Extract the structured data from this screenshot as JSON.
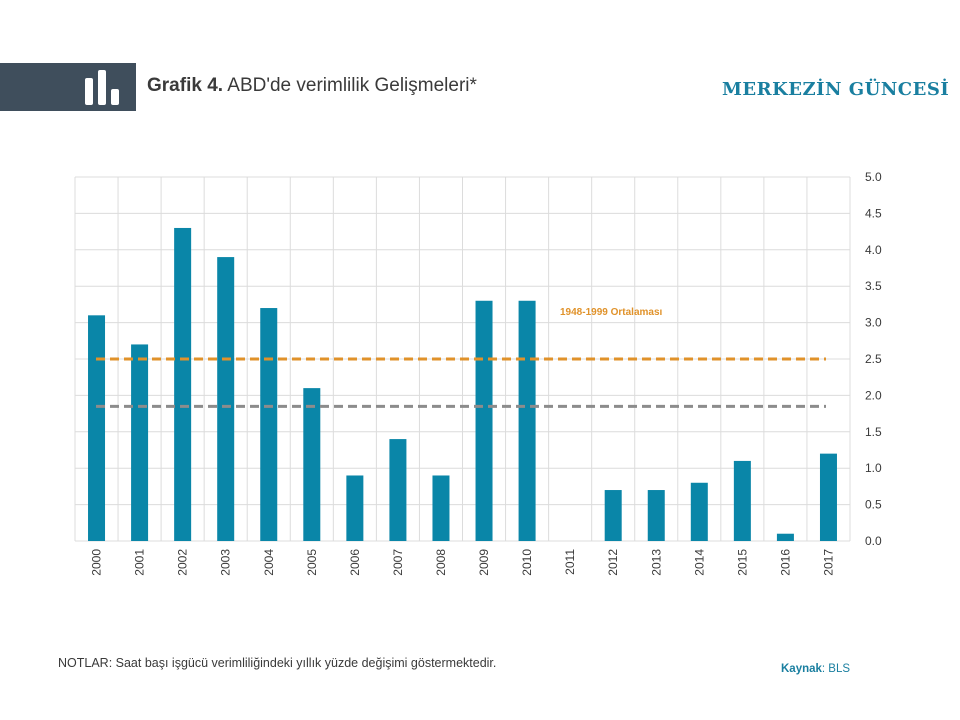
{
  "header": {
    "title_prefix": "Grafik 4.",
    "title_main": " ABD'de verimlilik Gelişmeleri*",
    "brand": "MERKEZİN GÜNCESİ",
    "icon": "bar-chart-icon"
  },
  "colors": {
    "header_block": "#3f4e5c",
    "bar": "#0a86a8",
    "avg_1948_1999": "#e0922a",
    "avg_2000_2017": "#8c8c8c",
    "brand": "#1a7fa0"
  },
  "chart_data": {
    "type": "bar",
    "title": "",
    "xlabel": "",
    "ylabel": "",
    "categories": [
      "2000",
      "2001",
      "2002",
      "2003",
      "2004",
      "2005",
      "2006",
      "2007",
      "2008",
      "2009",
      "2010",
      "2011",
      "2012",
      "2013",
      "2014",
      "2015",
      "2016",
      "2017"
    ],
    "values": [
      3.1,
      2.7,
      4.3,
      3.9,
      3.2,
      2.1,
      0.9,
      1.4,
      0.9,
      3.3,
      3.3,
      0.0,
      0.7,
      0.7,
      0.8,
      1.1,
      0.1,
      1.2
    ],
    "ylim": [
      0,
      5
    ],
    "yticks": [
      "0.0",
      "0.5",
      "1.0",
      "1.5",
      "2.0",
      "2.5",
      "3.0",
      "3.5",
      "4.0",
      "4.5",
      "5.0"
    ],
    "y_axis_side": "right",
    "grid": true,
    "reference_lines": [
      {
        "value": 2.5,
        "label": "1948-1999 Ortalaması",
        "style": "dashed"
      },
      {
        "value": 1.85,
        "label": "",
        "style": "dashed"
      }
    ]
  },
  "footer": {
    "note": "NOTLAR: Saat başı işgücü verimliliğindeki yıllık yüzde değişimi göstermektedir.",
    "source_label": "Kaynak",
    "source_value": ": BLS"
  }
}
